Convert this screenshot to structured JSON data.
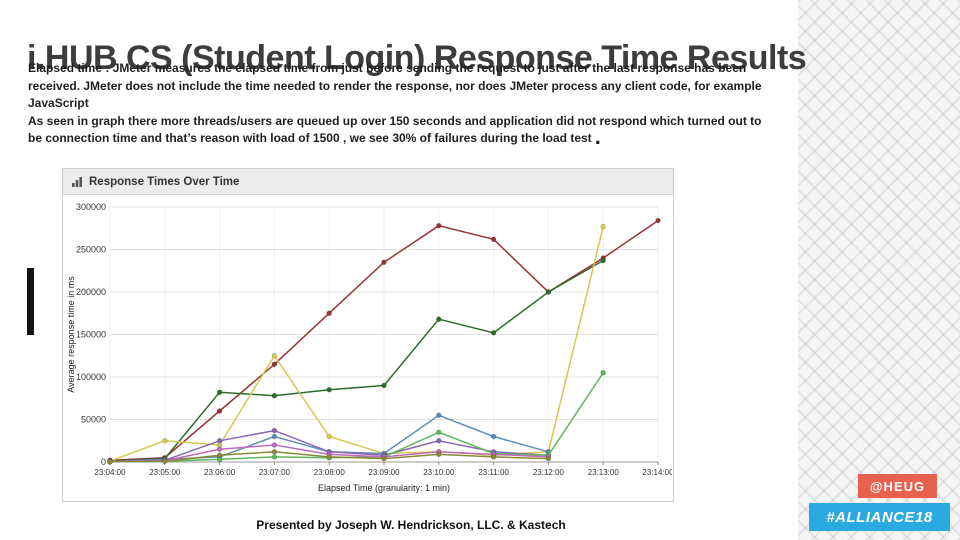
{
  "slide": {
    "title": "i.HUB CS (Student Login) Response Time Results",
    "body_paragraph_1": "Elapsed time : JMeter measures the elapsed time from just before sending the request to just after the last response has been received. JMeter does not include the time needed to render the response, nor does JMeter process any client code, for example JavaScript",
    "body_paragraph_2": "As seen in graph there more threads/users are queued up over 150 seconds and application did not respond which turned out to be connection time and that’s reason with load of 1500 , we see 30% of failures during the load test",
    "final_period": ".",
    "footer": "Presented by Joseph W. Hendrickson, LLC. & Kastech"
  },
  "badges": {
    "heug": {
      "label": "@HEUG",
      "color": "#e8604e"
    },
    "alliance": {
      "label": "#ALLIANCE18",
      "color": "#29abe2"
    }
  },
  "chart_data": {
    "type": "line",
    "title": "Response Times Over Time",
    "xlabel": "Elapsed Time (granularity: 1 min)",
    "ylabel": "Average response time in ms",
    "ylim": [
      0,
      300000
    ],
    "yticks": [
      0,
      50000,
      100000,
      150000,
      200000,
      250000,
      300000
    ],
    "categories": [
      "23:04:00",
      "23:05:00",
      "23:06:00",
      "23:07:00",
      "23:08:00",
      "23:09:00",
      "23:10:00",
      "23:11:00",
      "23:12:00",
      "23:13:00",
      "23:14:00"
    ],
    "grid": "horizontal",
    "legend": "none",
    "series": [
      {
        "name": "dark-red",
        "color": "#993333",
        "values": [
          2000,
          5000,
          60000,
          115000,
          175000,
          235000,
          278000,
          262000,
          200000,
          240000,
          284000
        ]
      },
      {
        "name": "dark-green",
        "color": "#2e6b2e",
        "values": [
          1000,
          4000,
          82000,
          78000,
          85000,
          90000,
          168000,
          152000,
          200000,
          237000,
          null
        ]
      },
      {
        "name": "yellow",
        "color": "#d6c84f",
        "values": [
          1000,
          25000,
          20000,
          125000,
          30000,
          10000,
          12000,
          8000,
          12000,
          277000,
          null
        ]
      },
      {
        "name": "steel-blue",
        "color": "#5b8fb9",
        "values": [
          500,
          3000,
          6000,
          30000,
          12000,
          10000,
          55000,
          30000,
          12000,
          null,
          null
        ]
      },
      {
        "name": "purple",
        "color": "#8a63b3",
        "values": [
          500,
          2000,
          25000,
          37000,
          12000,
          8000,
          25000,
          12000,
          8000,
          null,
          null
        ]
      },
      {
        "name": "bright-green",
        "color": "#5cb85c",
        "values": [
          500,
          1000,
          3000,
          6000,
          5000,
          6000,
          35000,
          10000,
          8000,
          105000,
          null
        ]
      },
      {
        "name": "magenta",
        "color": "#c06bc0",
        "values": [
          500,
          1500,
          15000,
          20000,
          9000,
          6000,
          12000,
          9000,
          6000,
          null,
          null
        ]
      },
      {
        "name": "olive",
        "color": "#8a8a3a",
        "values": [
          300,
          800,
          8000,
          12000,
          6000,
          4000,
          9000,
          6000,
          4000,
          null,
          null
        ]
      }
    ]
  }
}
